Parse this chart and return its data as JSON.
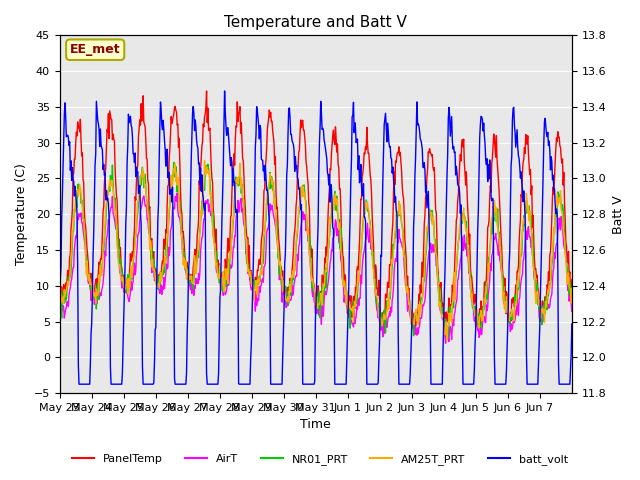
{
  "title": "Temperature and Batt V",
  "xlabel": "Time",
  "ylabel_left": "Temperature (C)",
  "ylabel_right": "Batt V",
  "ylim_left": [
    -5,
    45
  ],
  "ylim_right": [
    11.8,
    13.8
  ],
  "yticks_left": [
    -5,
    0,
    5,
    10,
    15,
    20,
    25,
    30,
    35,
    40,
    45
  ],
  "yticks_right": [
    11.8,
    12.0,
    12.2,
    12.4,
    12.6,
    12.8,
    13.0,
    13.2,
    13.4,
    13.6,
    13.8
  ],
  "xtick_labels": [
    "May 23",
    "May 24",
    "May 25",
    "May 26",
    "May 27",
    "May 28",
    "May 29",
    "May 30",
    "May 31",
    "Jun 1",
    "Jun 2",
    "Jun 3",
    "Jun 4",
    "Jun 5",
    "Jun 6",
    "Jun 7"
  ],
  "colors": {
    "PanelTemp": "#ff0000",
    "AirT": "#ff00ff",
    "NR01_PRT": "#00cc00",
    "AM25T_PRT": "#ffaa00",
    "batt_volt": "#0000ff"
  },
  "annotation_text": "EE_met",
  "annotation_color": "#8b0000",
  "annotation_bg": "#ffffcc",
  "annotation_border": "#aaaa00",
  "bg_color": "#e8e8e8",
  "n_days": 16,
  "n_points_per_day": 48
}
